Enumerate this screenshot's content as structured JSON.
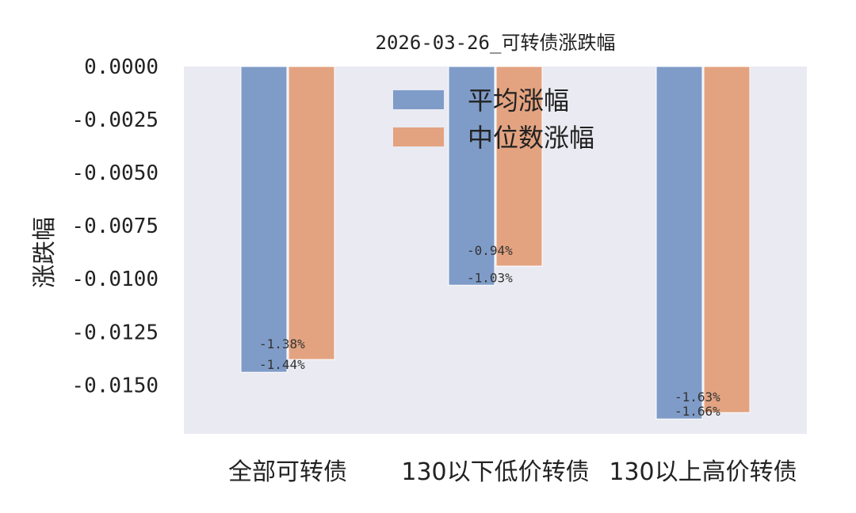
{
  "chart_data": {
    "type": "bar",
    "title": "2026-03-26_可转债涨跌幅",
    "xlabel": "",
    "ylabel": "涨跌幅",
    "categories": [
      "全部可转债",
      "130以下低价转债",
      "130以上高价转债"
    ],
    "series": [
      {
        "name": "平均涨幅",
        "color": "#7f9cc8",
        "values": [
          -0.0144,
          -0.0103,
          -0.0166
        ],
        "labels": [
          "-1.44%",
          "-1.03%",
          "-1.66%"
        ]
      },
      {
        "name": "中位数涨幅",
        "color": "#e3a381",
        "values": [
          -0.0138,
          -0.0094,
          -0.0163
        ],
        "labels": [
          "-1.38%",
          "-0.94%",
          "-1.63%"
        ]
      }
    ],
    "yticks": [
      "0.0000",
      "-0.0025",
      "-0.0050",
      "-0.0075",
      "-0.0100",
      "-0.0125",
      "-0.0150"
    ],
    "ylim": [
      -0.0173,
      0.0
    ],
    "grid": false,
    "legend_position": "top-center",
    "plot_background": "#eaeaf2"
  }
}
